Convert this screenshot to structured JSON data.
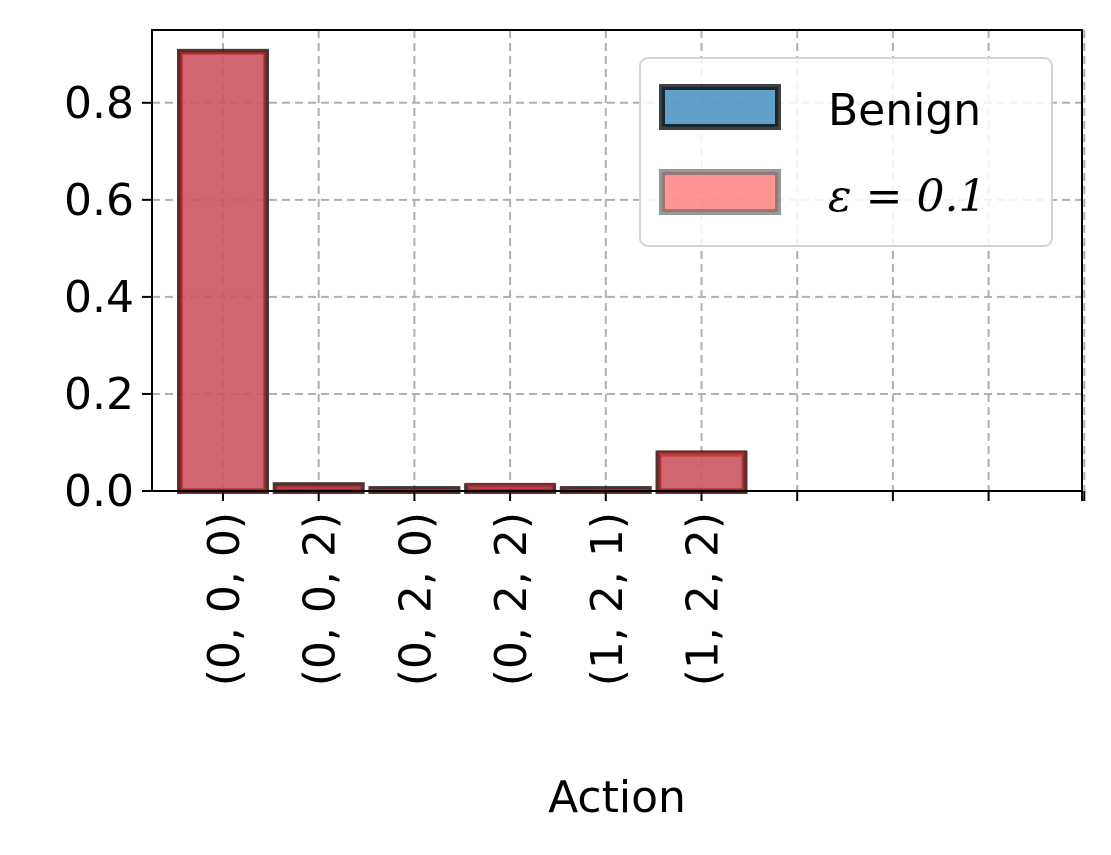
{
  "chart_data": {
    "type": "bar",
    "title": "",
    "xlabel": "Action",
    "ylabel": "",
    "categories": [
      "(0, 0, 0)",
      "(0, 0, 2)",
      "(0, 2, 0)",
      "(0, 2, 2)",
      "(1, 2, 1)",
      "(1, 2, 2)"
    ],
    "extra_empty_slots": 4,
    "ylim": [
      0,
      0.95
    ],
    "yticks": [
      "0.0",
      "0.2",
      "0.4",
      "0.6",
      "0.8"
    ],
    "grid": true,
    "legend_position": "top-right",
    "series": [
      {
        "name": "Benign",
        "values": [
          0.905,
          0.012,
          0.004,
          0.01,
          0.004,
          0.077
        ],
        "color": "#1f77b4",
        "edge_color": "#000000"
      },
      {
        "name": "ε = 0.1",
        "values": [
          0.905,
          0.012,
          0.004,
          0.013,
          0.004,
          0.08
        ],
        "color": "#ff4d4d",
        "edge_color": "#7a1010"
      }
    ]
  }
}
